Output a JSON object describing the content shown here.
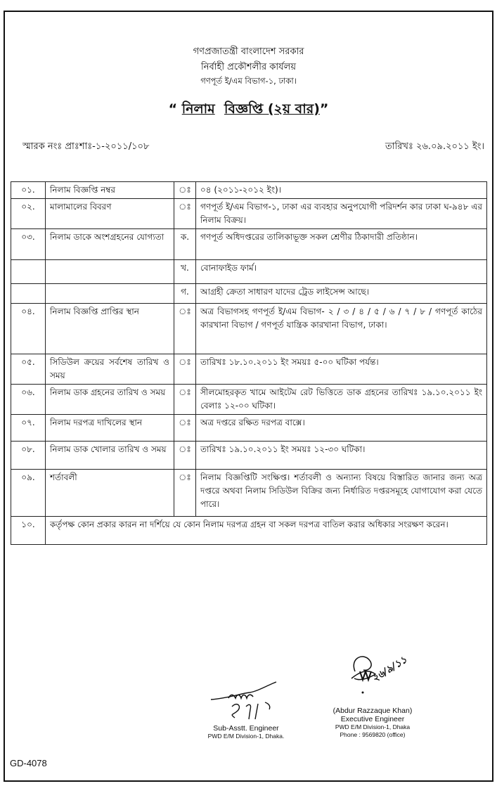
{
  "header": {
    "line1": "গণপ্রজাতন্ত্রী বাংলাদেশ সরকার",
    "line2": "নির্বাহী প্রকৌশলীর কার্যলয়",
    "line3": "গণপূর্ত ই/এম বিভাগ-১, ঢাকা।",
    "title_open": "“",
    "title_part1": "নিলাম",
    "title_part2": "বিজ্ঞপ্তি (২য় বার)",
    "title_close": "”"
  },
  "memo": "স্মারক নংঃ প্রাঃশাঃ-১-২০১১/১০৮",
  "date": "তারিখঃ ২৬.০৯.২০১১ ইং।",
  "rows": [
    {
      "num": "০১.",
      "label": "নিলাম বিজ্ঞপ্তি নম্বর",
      "sep": "ঃ",
      "value": "০৪ (২০১১-২০১২ ইং)।"
    },
    {
      "num": "০২.",
      "label": "মালামালের বিবরণ",
      "sep": "ঃ",
      "value": "গণপূর্ত ই/এম বিভাগ-১, ঢাকা এর ব্যবহার অনুপযোগী পরিদর্শন কার ঢাকা ঘ-৯৪৮ এর নিলাম বিক্রয়।"
    },
    {
      "num": "০৩.",
      "label": "নিলাম ডাকে অংশগ্রহনের যোগ্যতা",
      "sep": "ক.",
      "value": "গণপূর্ত অধিদপ্তরের তালিকাভূক্ত সকল শ্রেণীর ঠিকাদারী প্রতিষ্ঠান।"
    },
    {
      "num": "",
      "label": "",
      "sep": "খ.",
      "value": "বোনাফাইড ফার্ম।"
    },
    {
      "num": "",
      "label": "",
      "sep": "গ.",
      "value": "আগ্রহী ক্রেতা সাধারণ যাদের ট্রেড লাইসেন্স আছে।"
    },
    {
      "num": "০৪.",
      "label": "নিলাম বিজ্ঞপ্তি প্রাপ্তির স্থান",
      "sep": "ঃ",
      "value": "অত্র বিভাগসহ গণপূর্ত ই/এম বিভাগ- ২ / ৩ / ৪ / ৫ / ৬ / ৭ / ৮ / গণপূর্ত কাঠের কারখানা বিভাগ / গণপূর্ত যান্ত্রিক কারখানা বিভাগ, ঢাকা।"
    },
    {
      "num": "০৫.",
      "label": "সিডিউল ক্রয়ের সর্বশেষ তারিখ ও সময়",
      "sep": "ঃ",
      "value": "তারিখঃ ১৮.১০.২০১১ ইং        সময়ঃ ৫-০০ ঘটিকা পর্যন্ত।"
    },
    {
      "num": "০৬.",
      "label": "নিলাম ডাক গ্রহনের তারিখ ও সময়",
      "sep": "ঃ",
      "value": "সীলমোহরকৃত খামে আইটেম রেট ভিত্তিতে ডাক গ্রহনের তারিখঃ ১৯.১০.২০১১ ইং        বেলাঃ ১২-০০ ঘটিকা।"
    },
    {
      "num": "০৭.",
      "label": "নিলাম দরপত্র দাখিলের স্থান",
      "sep": "ঃ",
      "value": "অত্র দপ্তরে রক্ষিত দরপত্র বাক্সে।"
    },
    {
      "num": "০৮.",
      "label": "নিলাম ডাক খোলার তারিখ ও সময়",
      "sep": "ঃ",
      "value": "তারিখঃ ১৯.১০.২০১১ ইং        সময়ঃ ১২-৩০ ঘটিকা।"
    },
    {
      "num": "০৯.",
      "label": "শর্তাবলী",
      "sep": "ঃ",
      "value": "নিলাম বিজ্ঞপ্তিটি সংক্ষিপ্ত। শর্তাবলী ও অন্যান্য বিষয়ে বিস্তারিত জানার জন্য অত্র দপ্তরে অথবা নিলাম সিডিউল বিক্রির জন্য নির্ধারিত দপ্তরসমূহে যোগাযোগ করা যেতে পারে।"
    }
  ],
  "row10": {
    "num": "১০.",
    "value": "কর্তৃপক্ষ কোন প্রকার কারন না দর্শিয়ে যে কোন নিলাম দরপত্র গ্রহন বা সকল দরপত্র বাতিল করার অধিকার সংরক্ষণ করেন।"
  },
  "signatures": {
    "left": {
      "title": "Sub-Asstt. Engineer",
      "office": "PWD E/M Division-1, Dhaka."
    },
    "right": {
      "name": "(Abdur Razzaque Khan)",
      "title": "Executive Engineer",
      "office": "PWD E/M Division-1, Dhaka",
      "phone": "Phone : 9569820 (office)",
      "handwritten_date": "২৬/৯/১১"
    }
  },
  "footer_code": "GD-4078"
}
